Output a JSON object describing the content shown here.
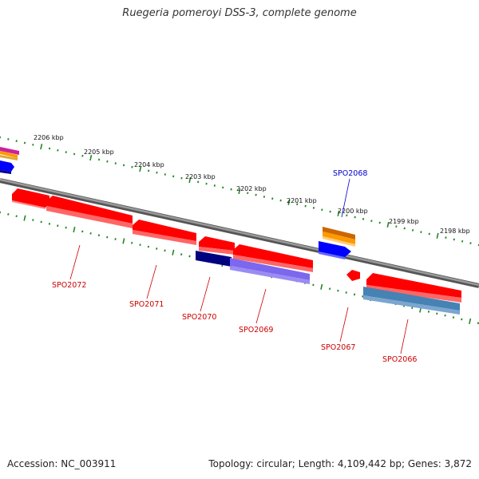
{
  "title": "Ruegeria pomeroyi DSS-3, complete genome",
  "footer": {
    "accession": "Accession: NC_003911",
    "summary": "Topology: circular; Length: 4,109,442 bp; Genes: 3,872"
  },
  "ruler_labels": [
    "2206 kbp",
    "2205 kbp",
    "2204 kbp",
    "2203 kbp",
    "2202 kbp",
    "2201 kbp",
    "2200 kbp",
    "2199 kbp",
    "2198 kbp"
  ],
  "gene_labels": [
    "SPO2072",
    "SPO2071",
    "SPO2070",
    "SPO2069",
    "SPO2067",
    "SPO2066",
    "SPO2068"
  ],
  "colors": {
    "forward_gene": "#ff0000",
    "reverse_label": "#cc0000",
    "highlight_label": "#0000cc",
    "backbone": "#808080",
    "ticks": "#228822",
    "orange": "#ff9900",
    "blue": "#0000ff",
    "navy": "#000080",
    "slate_blue": "#7b68ee",
    "steel_blue": "#4682b4"
  }
}
